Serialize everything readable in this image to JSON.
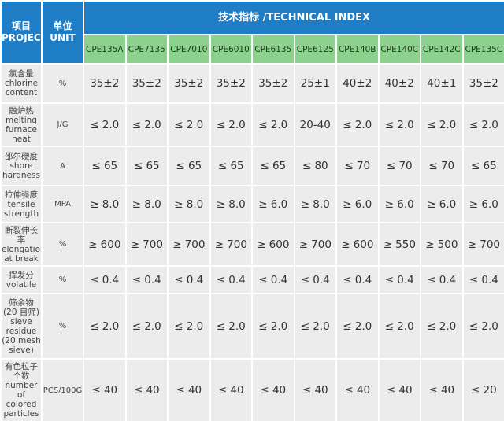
{
  "header": {
    "project": "项目",
    "project_en": "PROJECT",
    "unit": "单位",
    "unit_en": "UNIT",
    "index_title": "技术指标 /TECHNICAL INDEX",
    "grades": [
      "CPE135A",
      "CPE7135",
      "CPE7010",
      "CPE6010",
      "CPE6135",
      "CPE6125",
      "CPE140B",
      "CPE140C",
      "CPE142C",
      "CPE135C"
    ]
  },
  "rows": [
    {
      "zh": "氯含量",
      "en": "chlorine content",
      "unit": "%",
      "values": [
        "35±2",
        "35±2",
        "35±2",
        "35±2",
        "35±2",
        "25±1",
        "40±2",
        "40±2",
        "40±1",
        "35±2"
      ]
    },
    {
      "zh": "融炉热",
      "en": "melting furnace heat",
      "unit": "J/G",
      "values": [
        "≤ 2.0",
        "≤ 2.0",
        "≤ 2.0",
        "≤ 2.0",
        "≤ 2.0",
        "20-40",
        "≤ 2.0",
        "≤ 2.0",
        "≤ 2.0",
        "≤ 2.0"
      ]
    },
    {
      "zh": "邵尔硬度",
      "en": "shore hardness",
      "unit": "A",
      "values": [
        "≤ 65",
        "≤ 65",
        "≤ 65",
        "≤ 65",
        "≤ 65",
        "≤ 80",
        "≤ 70",
        "≤ 70",
        "≤ 70",
        "≤ 65"
      ]
    },
    {
      "zh": "拉伸强度",
      "en": "tensile strength",
      "unit": "MPA",
      "values": [
        "≥ 8.0",
        "≥ 8.0",
        "≥ 8.0",
        "≥ 8.0",
        "≥ 6.0",
        "≥ 8.0",
        "≥ 6.0",
        "≥ 6.0",
        "≥ 6.0",
        "≥ 6.0"
      ]
    },
    {
      "zh": "断裂伸长率",
      "en": "elongation at break",
      "unit": "%",
      "values": [
        "≥ 600",
        "≥ 700",
        "≥ 700",
        "≥ 700",
        "≥ 600",
        "≥ 700",
        "≥ 600",
        "≥ 550",
        "≥ 500",
        "≥ 700"
      ]
    },
    {
      "zh": "挥发分",
      "en": "volatile",
      "unit": "%",
      "values": [
        "≤ 0.4",
        "≤ 0.4",
        "≤ 0.4",
        "≤ 0.4",
        "≤ 0.4",
        "≤ 0.4",
        "≤ 0.4",
        "≤ 0.4",
        "≤ 0.4",
        "≤ 0.4"
      ]
    },
    {
      "zh": "筛余物 (20 目筛)",
      "en": "sieve residue (20 mesh sieve)",
      "unit": "%",
      "values": [
        "≤ 2.0",
        "≤ 2.0",
        "≤ 2.0",
        "≤ 2.0",
        "≤ 2.0",
        "≤ 2.0",
        "≤ 2.0",
        "≤ 2.0",
        "≤ 2.0",
        "≤ 2.0"
      ]
    },
    {
      "zh": "有色粒子个数",
      "en": "number of colored particles",
      "unit": "PCS/100G",
      "values": [
        "≤ 40",
        "≤ 40",
        "≤ 40",
        "≤ 40",
        "≤ 40",
        "≤ 40",
        "≤ 40",
        "≤ 40",
        "≤ 40",
        "≤ 20"
      ]
    }
  ]
}
